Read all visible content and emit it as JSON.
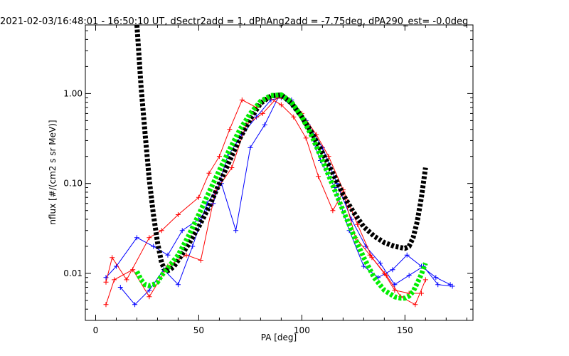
{
  "chart_data": {
    "type": "line",
    "title": "2021-02-03/16:48:01 - 16:50:10 UT, dSectr2add = 1, dPhAng2add = -7.75deg, dPA290_est=  -0.0deg",
    "xlabel": "PA [deg]",
    "ylabel": "nflux [#/(cm2 s sr MeV)]",
    "x_scale": "linear",
    "y_scale": "log",
    "xlim": [
      -5,
      183
    ],
    "ylim": [
      0.003,
      5.8
    ],
    "x_ticks": [
      0,
      50,
      100,
      150
    ],
    "x_tick_labels": [
      "0",
      "50",
      "100",
      "150"
    ],
    "y_ticks": [
      0.01,
      0.1,
      1.0
    ],
    "y_tick_labels": [
      "0.01",
      "0.10",
      "1.00"
    ],
    "grid": false,
    "legend": "none",
    "series": [
      {
        "style": "thick-dashed-line",
        "color": "#000000",
        "x": [
          20,
          22,
          24,
          26,
          28,
          30,
          32,
          34,
          36,
          38,
          40,
          45,
          50,
          55,
          60,
          65,
          70,
          75,
          80,
          85,
          90,
          95,
          100,
          105,
          110,
          115,
          120,
          125,
          130,
          135,
          140,
          145,
          150,
          152,
          154,
          156,
          158,
          160
        ],
        "y": [
          5.8,
          1.2,
          0.35,
          0.11,
          0.045,
          0.022,
          0.013,
          0.0105,
          0.011,
          0.012,
          0.014,
          0.021,
          0.033,
          0.055,
          0.1,
          0.18,
          0.32,
          0.52,
          0.78,
          0.94,
          0.97,
          0.78,
          0.55,
          0.36,
          0.22,
          0.13,
          0.075,
          0.048,
          0.033,
          0.026,
          0.022,
          0.02,
          0.019,
          0.02,
          0.025,
          0.038,
          0.07,
          0.15
        ]
      },
      {
        "style": "thick-dashed-line",
        "color": "#00ee00",
        "x": [
          20,
          22,
          24,
          26,
          28,
          30,
          32,
          35,
          40,
          45,
          50,
          55,
          60,
          65,
          70,
          75,
          80,
          85,
          90,
          95,
          100,
          105,
          110,
          115,
          120,
          125,
          130,
          135,
          140,
          145,
          148,
          150,
          152,
          154,
          156,
          158,
          160
        ],
        "y": [
          0.0105,
          0.0085,
          0.0075,
          0.0073,
          0.0075,
          0.008,
          0.0095,
          0.0115,
          0.016,
          0.026,
          0.045,
          0.08,
          0.14,
          0.24,
          0.4,
          0.6,
          0.82,
          0.95,
          0.97,
          0.8,
          0.55,
          0.33,
          0.18,
          0.095,
          0.05,
          0.027,
          0.015,
          0.009,
          0.0065,
          0.0055,
          0.0053,
          0.0053,
          0.0056,
          0.0063,
          0.0078,
          0.0098,
          0.013
        ]
      },
      {
        "style": "thin-line-with-plus-markers",
        "color": "#0000ff",
        "x": [
          5,
          10,
          20,
          28,
          35,
          42,
          50,
          57,
          64,
          71,
          78,
          85,
          90,
          95,
          102,
          109,
          116,
          123,
          130,
          137,
          144,
          151,
          158,
          165,
          172
        ],
        "y": [
          0.009,
          0.012,
          0.025,
          0.02,
          0.016,
          0.03,
          0.04,
          0.06,
          0.2,
          0.35,
          0.55,
          0.85,
          0.9,
          0.85,
          0.5,
          0.18,
          0.09,
          0.03,
          0.012,
          0.009,
          0.011,
          0.016,
          0.012,
          0.009,
          0.0075
        ]
      },
      {
        "style": "thin-line-with-plus-markers",
        "color": "#0000ff",
        "x": [
          12,
          19,
          26,
          33,
          40,
          47,
          54,
          61,
          68,
          75,
          82,
          89,
          96,
          103,
          110,
          117,
          124,
          131,
          138,
          145,
          152,
          159,
          166,
          173
        ],
        "y": [
          0.007,
          0.0045,
          0.0065,
          0.011,
          0.0075,
          0.02,
          0.06,
          0.1,
          0.03,
          0.25,
          0.45,
          0.95,
          0.7,
          0.45,
          0.25,
          0.1,
          0.04,
          0.02,
          0.013,
          0.0075,
          0.0095,
          0.012,
          0.0075,
          0.0072
        ]
      },
      {
        "style": "thin-line-with-plus-markers",
        "color": "#ff0000",
        "x": [
          5,
          8,
          15,
          26,
          32,
          40,
          50,
          55,
          60,
          65,
          71,
          78,
          84,
          90,
          96,
          102,
          108,
          115,
          120,
          126,
          133,
          140,
          145,
          152,
          158
        ],
        "y": [
          0.008,
          0.015,
          0.0085,
          0.025,
          0.03,
          0.045,
          0.07,
          0.13,
          0.2,
          0.4,
          0.85,
          0.7,
          0.9,
          0.75,
          0.55,
          0.32,
          0.12,
          0.05,
          0.08,
          0.025,
          0.016,
          0.01,
          0.0065,
          0.006,
          0.006
        ]
      },
      {
        "style": "thin-line-with-plus-markers",
        "color": "#ff0000",
        "x": [
          5,
          9,
          18,
          26,
          35,
          44,
          51,
          58,
          66,
          73,
          81,
          88,
          94,
          100,
          107,
          113,
          120,
          127,
          134,
          141,
          148,
          155,
          160
        ],
        "y": [
          0.0045,
          0.0085,
          0.011,
          0.0055,
          0.012,
          0.016,
          0.014,
          0.08,
          0.15,
          0.45,
          0.6,
          0.9,
          0.85,
          0.6,
          0.35,
          0.2,
          0.085,
          0.035,
          0.015,
          0.0095,
          0.0055,
          0.0045,
          0.0085
        ]
      }
    ]
  }
}
